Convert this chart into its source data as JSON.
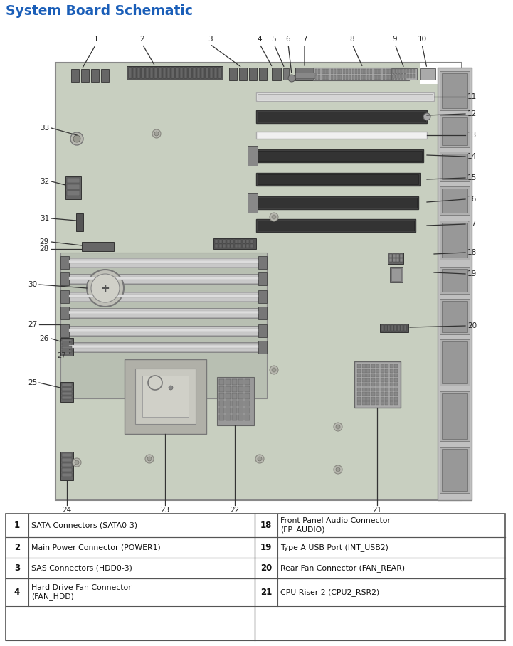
{
  "title": "System Board Schematic",
  "title_color": "#1a5eb8",
  "bg_color": "#ffffff",
  "board_color": "#c8cfc0",
  "board_border_color": "#888888",
  "fig_width": 7.21,
  "fig_height": 9.08,
  "table_entries_left": [
    {
      "num": "1",
      "text": "SATA Connectors (SATA0-3)"
    },
    {
      "num": "2",
      "text": "Main Power Connector (POWER1)"
    },
    {
      "num": "3",
      "text": "SAS Connectors (HDD0-3)"
    },
    {
      "num": "4",
      "text": "Hard Drive Fan Connector\n(FAN_HDD)"
    }
  ],
  "table_entries_right": [
    {
      "num": "18",
      "text": "Front Panel Audio Connector\n(FP_AUDIO)"
    },
    {
      "num": "19",
      "text": "Type A USB Port (INT_USB2)"
    },
    {
      "num": "20",
      "text": "Rear Fan Connector (FAN_REAR)"
    },
    {
      "num": "21",
      "text": "CPU Riser 2 (CPU2_RSR2)"
    }
  ]
}
